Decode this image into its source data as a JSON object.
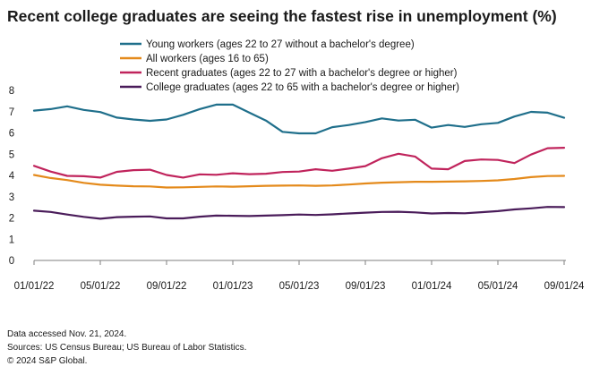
{
  "chart_data": {
    "type": "line",
    "title": "Recent college graduates are seeing the fastest rise in unemployment (%)",
    "xlabel": "",
    "ylabel": "",
    "ylim": [
      0,
      8
    ],
    "y_ticks": [
      "0",
      "1",
      "2",
      "3",
      "4",
      "5",
      "6",
      "7",
      "8"
    ],
    "x_tick_labels": [
      "01/01/22",
      "05/01/22",
      "09/01/22",
      "01/01/23",
      "05/01/23",
      "09/01/23",
      "01/01/24",
      "05/01/24",
      "09/01/24"
    ],
    "x_range": [
      "2022-01",
      "2024-09"
    ],
    "x": [
      "2022-01",
      "2022-02",
      "2022-03",
      "2022-04",
      "2022-05",
      "2022-06",
      "2022-07",
      "2022-08",
      "2022-09",
      "2022-10",
      "2022-11",
      "2022-12",
      "2023-01",
      "2023-02",
      "2023-03",
      "2023-04",
      "2023-05",
      "2023-06",
      "2023-07",
      "2023-08",
      "2023-09",
      "2023-10",
      "2023-11",
      "2023-12",
      "2024-01",
      "2024-02",
      "2024-03",
      "2024-04",
      "2024-05",
      "2024-06",
      "2024-07",
      "2024-08",
      "2024-09"
    ],
    "grid": false,
    "legend_position": "top",
    "series": [
      {
        "name": "Young workers (ages 22 to 27 without a bachelor's degree)",
        "color": "#1f6f8b",
        "values": [
          7.05,
          7.12,
          7.25,
          7.08,
          6.98,
          6.72,
          6.63,
          6.57,
          6.63,
          6.85,
          7.12,
          7.33,
          7.33,
          6.95,
          6.58,
          6.05,
          5.98,
          5.98,
          6.27,
          6.37,
          6.51,
          6.68,
          6.58,
          6.62,
          6.25,
          6.37,
          6.28,
          6.41,
          6.47,
          6.77,
          6.99,
          6.95,
          6.71
        ]
      },
      {
        "name": "All workers (ages 16 to 65)",
        "color": "#e48a1b",
        "values": [
          4.02,
          3.88,
          3.78,
          3.65,
          3.56,
          3.52,
          3.49,
          3.48,
          3.43,
          3.44,
          3.46,
          3.48,
          3.47,
          3.49,
          3.51,
          3.52,
          3.53,
          3.51,
          3.53,
          3.57,
          3.62,
          3.66,
          3.68,
          3.7,
          3.7,
          3.71,
          3.72,
          3.74,
          3.77,
          3.83,
          3.92,
          3.97,
          3.98
        ]
      },
      {
        "name": "Recent graduates (ages 22 to 27 with a bachelor's degree or higher)",
        "color": "#c0245c",
        "values": [
          4.45,
          4.18,
          3.98,
          3.96,
          3.9,
          4.17,
          4.25,
          4.27,
          4.02,
          3.9,
          4.05,
          4.03,
          4.1,
          4.06,
          4.08,
          4.16,
          4.18,
          4.29,
          4.22,
          4.32,
          4.44,
          4.81,
          5.02,
          4.89,
          4.32,
          4.29,
          4.68,
          4.75,
          4.73,
          4.58,
          4.98,
          5.28,
          5.3
        ]
      },
      {
        "name": "College graduates (ages 22 to 65 with a bachelor's degree or higher)",
        "color": "#4a1c5a",
        "values": [
          2.34,
          2.28,
          2.16,
          2.05,
          1.96,
          2.04,
          2.06,
          2.07,
          1.98,
          1.98,
          2.06,
          2.11,
          2.1,
          2.09,
          2.11,
          2.13,
          2.16,
          2.14,
          2.17,
          2.21,
          2.25,
          2.28,
          2.29,
          2.26,
          2.21,
          2.23,
          2.22,
          2.27,
          2.32,
          2.4,
          2.45,
          2.52,
          2.51
        ]
      }
    ]
  },
  "footer": {
    "line1": "Data accessed Nov. 21, 2024.",
    "line2": "Sources: US Census Bureau; US Bureau of Labor Statistics.",
    "line3": "© 2024 S&P Global."
  }
}
